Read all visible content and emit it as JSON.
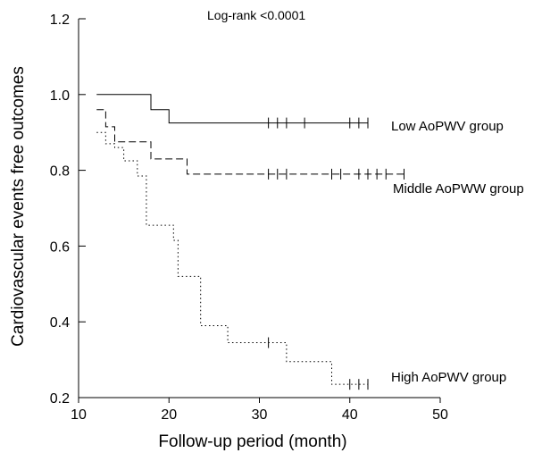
{
  "chart_data": {
    "type": "line",
    "title": "",
    "annotation": "Log-rank <0.0001",
    "xlabel": "Follow-up period (month)",
    "ylabel": "Cardiovascular events free outcomes",
    "xlim": [
      10,
      50
    ],
    "ylim": [
      0.2,
      1.2
    ],
    "xticks": [
      10,
      20,
      30,
      40,
      50
    ],
    "yticks": [
      0.2,
      0.4,
      0.6,
      0.8,
      1.0,
      1.2
    ],
    "xtick_labels": [
      "10",
      "20",
      "30",
      "40",
      "50"
    ],
    "ytick_labels": [
      "0.2",
      "0.4",
      "0.6",
      "0.8",
      "1.0",
      "1.2"
    ],
    "grid": false,
    "series": [
      {
        "name": "Low AoPWV group",
        "style": "solid",
        "step_x": [
          12,
          18,
          20,
          42
        ],
        "step_y": [
          1.0,
          0.96,
          0.925,
          0.925
        ],
        "censored_x": [
          31,
          32,
          33,
          35,
          40,
          41,
          42
        ]
      },
      {
        "name": "Middle AoPWW group",
        "style": "dashed",
        "step_x": [
          12,
          13,
          14,
          15,
          18,
          20,
          22,
          46
        ],
        "step_y": [
          0.96,
          0.915,
          0.875,
          0.875,
          0.83,
          0.83,
          0.79,
          0.79
        ],
        "censored_x": [
          31,
          32,
          33,
          38,
          39,
          41,
          42,
          43,
          44,
          46
        ]
      },
      {
        "name": "High AoPWV group",
        "style": "dotted",
        "step_x": [
          12,
          13,
          14,
          15,
          16.5,
          17.5,
          20.5,
          21,
          22,
          23.5,
          26.5,
          33,
          38,
          42
        ],
        "step_y": [
          0.9,
          0.87,
          0.86,
          0.825,
          0.785,
          0.655,
          0.615,
          0.52,
          0.52,
          0.39,
          0.345,
          0.295,
          0.235,
          0.235
        ],
        "censored_x": [
          31,
          40,
          41,
          42
        ]
      }
    ]
  }
}
